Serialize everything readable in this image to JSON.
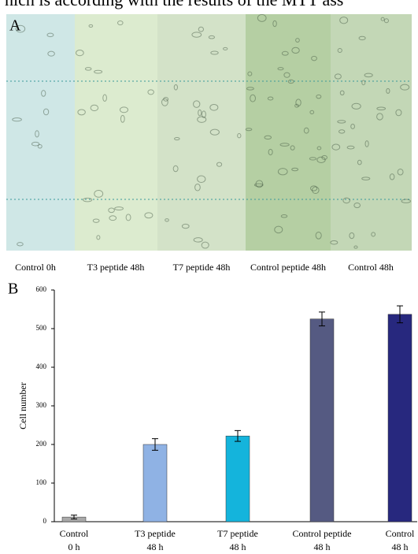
{
  "caption_fragment": "hich is according with the results of the MTT ass",
  "panel_a": {
    "label": "A",
    "images": [
      "Control  0h",
      "T3 peptide  48h",
      "T7 peptide  48h",
      "Control peptide  48h",
      "Control 48h"
    ]
  },
  "chart_data": {
    "type": "bar",
    "panel_label": "B",
    "y_label": "Cell number",
    "categories": [
      [
        "Control",
        "0 h"
      ],
      [
        "T3 peptide",
        "48 h"
      ],
      [
        "T7 peptide",
        "48 h"
      ],
      [
        "Control peptide",
        "48 h"
      ],
      [
        "Control",
        "48 h"
      ]
    ],
    "values": [
      12,
      200,
      222,
      525,
      537
    ],
    "errors": [
      5,
      15,
      14,
      18,
      22
    ],
    "colors": [
      "#a9a9a9",
      "#8fb2e4",
      "#14b4dc",
      "#555a82",
      "#27287e"
    ],
    "ylim": [
      0,
      600
    ],
    "yticks": [
      0,
      100,
      200,
      300,
      400,
      500,
      600
    ]
  }
}
